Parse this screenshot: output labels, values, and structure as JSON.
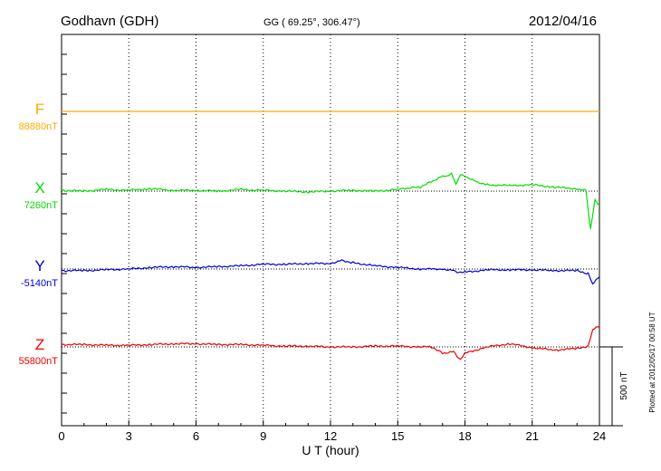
{
  "header": {
    "station": "Godhavn (GDH)",
    "coords": "GG ( 69.25°, 306.47°)",
    "date": "2012/04/16"
  },
  "footer": {
    "plotted": "Plotted at 2012/05/17 00:58 UT"
  },
  "chart_data": {
    "type": "line",
    "title": "Godhavn (GDH)",
    "xlabel": "U T (hour)",
    "xlim": [
      0,
      24
    ],
    "xticks": [
      "0",
      "3",
      "6",
      "9",
      "12",
      "15",
      "18",
      "21",
      "24"
    ],
    "grid": true,
    "scale_bar": {
      "label": "500 nT",
      "value_nT": 500
    },
    "series": [
      {
        "name": "F",
        "baseline_label": "88880nT",
        "color": "#ffaa00",
        "x": [
          0,
          24
        ],
        "y": [
          0,
          0
        ]
      },
      {
        "name": "X",
        "baseline_label": "7260nT",
        "color": "#00dd00",
        "x": [
          0,
          1,
          2,
          3,
          4,
          5,
          6,
          7,
          8,
          9,
          10,
          11,
          12,
          13,
          14,
          15,
          15.5,
          16,
          16.5,
          17,
          17.2,
          17.4,
          17.6,
          17.8,
          18,
          18.5,
          19,
          20,
          21,
          22,
          23,
          23.4,
          23.6,
          23.8,
          24
        ],
        "y": [
          5,
          0,
          10,
          5,
          15,
          5,
          5,
          0,
          10,
          5,
          0,
          -5,
          0,
          5,
          0,
          10,
          20,
          25,
          60,
          95,
          90,
          110,
          45,
          110,
          95,
          60,
          40,
          35,
          40,
          25,
          15,
          5,
          -245,
          -60,
          -90
        ]
      },
      {
        "name": "Y",
        "baseline_label": "-5140nT",
        "color": "#0000dd",
        "x": [
          0,
          1,
          2,
          3,
          4,
          5,
          6,
          7,
          8,
          9,
          10,
          11,
          12,
          12.5,
          13,
          14,
          15,
          16,
          17,
          17.5,
          17.8,
          18,
          19,
          20,
          21,
          22,
          23,
          23.5,
          23.7,
          24
        ],
        "y": [
          -10,
          -10,
          -5,
          0,
          10,
          15,
          10,
          15,
          20,
          30,
          30,
          35,
          35,
          55,
          40,
          20,
          10,
          0,
          0,
          -10,
          -25,
          -20,
          -5,
          -5,
          -5,
          -10,
          -10,
          -30,
          -95,
          -50
        ]
      },
      {
        "name": "Z",
        "baseline_label": "55800nT",
        "color": "#ee0000",
        "x": [
          0,
          1,
          2,
          3,
          4,
          5,
          6,
          7,
          8,
          9,
          10,
          11,
          12,
          13,
          14,
          15,
          16,
          16.5,
          17,
          17.5,
          17.8,
          18,
          19,
          20,
          21,
          22,
          23,
          23.5,
          23.7,
          24
        ],
        "y": [
          15,
          15,
          10,
          10,
          15,
          20,
          20,
          15,
          15,
          10,
          5,
          5,
          0,
          0,
          5,
          5,
          0,
          0,
          -40,
          -30,
          -85,
          -40,
          0,
          20,
          -5,
          -20,
          -10,
          5,
          110,
          130
        ]
      }
    ]
  }
}
